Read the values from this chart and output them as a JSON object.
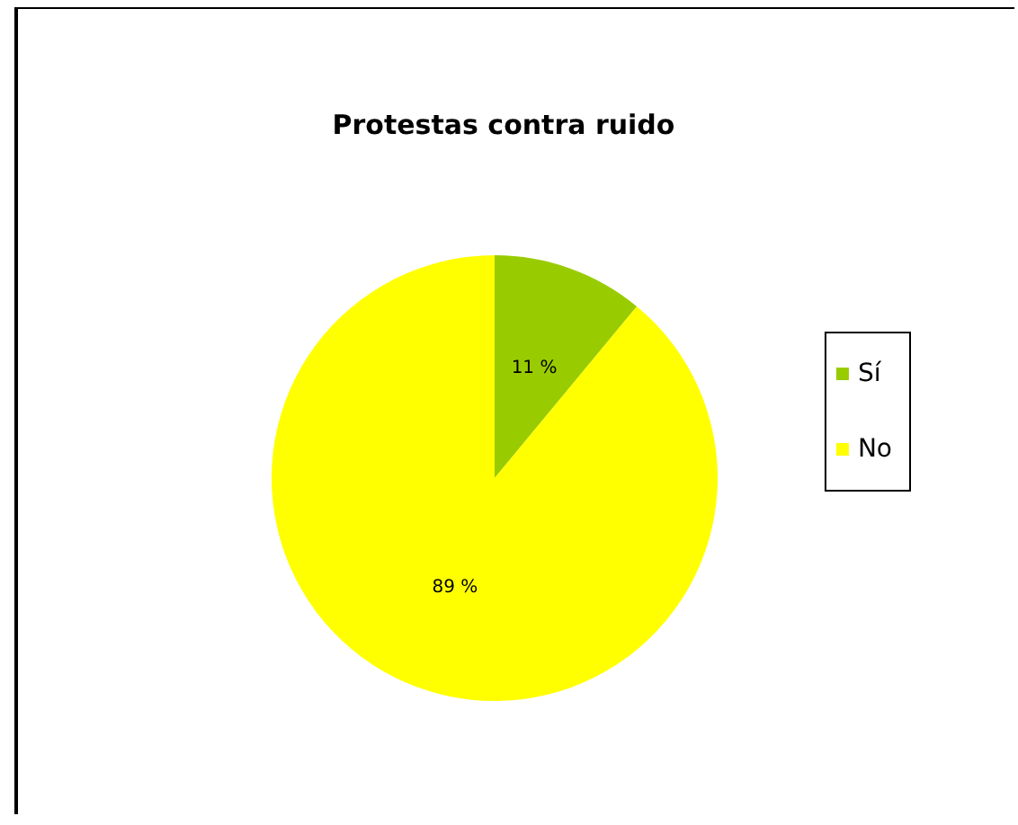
{
  "chart_data": {
    "type": "pie",
    "title": "Protestas contra ruido",
    "categories": [
      "Sí",
      "No"
    ],
    "values": [
      11,
      89
    ],
    "colors": [
      "#99cc00",
      "#ffff00"
    ],
    "value_labels": [
      "11 %",
      "89 %"
    ],
    "legend": "right"
  }
}
